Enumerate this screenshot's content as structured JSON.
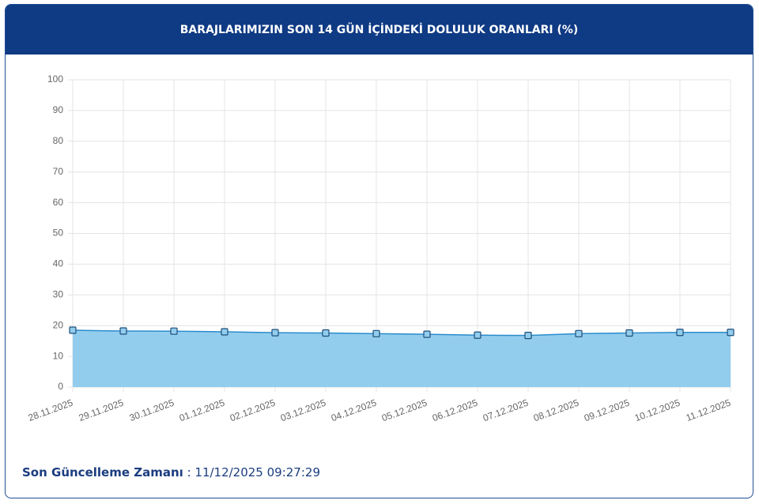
{
  "chart_data": {
    "type": "area",
    "title": "BARAJLARIMIZIN SON 14 GÜN İÇİNDEKİ DOLULUK ORANLARI (%)",
    "categories": [
      "28.11.2025",
      "29.11.2025",
      "30.11.2025",
      "01.12.2025",
      "02.12.2025",
      "03.12.2025",
      "04.12.2025",
      "05.12.2025",
      "06.12.2025",
      "07.12.2025",
      "08.12.2025",
      "09.12.2025",
      "10.12.2025",
      "11.12.2025"
    ],
    "values": [
      18.5,
      18.25,
      18.2,
      18.0,
      17.7,
      17.6,
      17.4,
      17.2,
      16.9,
      16.8,
      17.4,
      17.6,
      17.8,
      17.8
    ],
    "color": "#2b8ccb",
    "fill": "#93cdee",
    "ylim": [
      0,
      100
    ],
    "yticks": [
      0,
      10,
      20,
      30,
      40,
      50,
      60,
      70,
      80,
      90,
      100
    ],
    "grid": true
  },
  "footer": {
    "label": "Son Güncelleme Zamanı",
    "value": ": 11/12/2025 09:27:29"
  }
}
